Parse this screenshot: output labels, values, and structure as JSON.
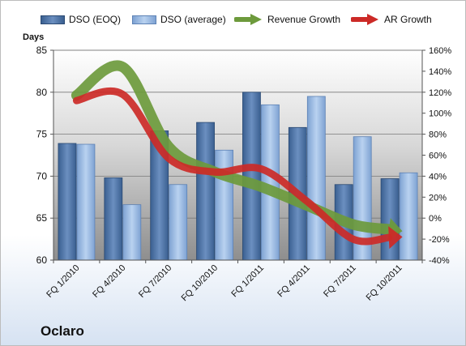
{
  "chart_data": {
    "type": "bar",
    "company": "Oclaro",
    "y_left_label": "Days",
    "y_left_range": [
      60,
      85
    ],
    "y_left_ticks": [
      "60",
      "65",
      "70",
      "75",
      "80",
      "85"
    ],
    "y_right_range": [
      -40,
      160
    ],
    "y_right_ticks": [
      "-40%",
      "-20%",
      "0%",
      "20%",
      "40%",
      "60%",
      "80%",
      "100%",
      "120%",
      "140%",
      "160%"
    ],
    "categories": [
      "FQ 1/2010",
      "FQ 4/2010",
      "FQ 7/2010",
      "FQ 10/2010",
      "FQ 1/2011",
      "FQ 4/2011",
      "FQ 7/2011",
      "FQ 10/2011"
    ],
    "series": [
      {
        "name": "DSO (EOQ)",
        "kind": "bar",
        "axis": "left",
        "color": "#4a6fa0",
        "values": [
          73.9,
          69.8,
          75.4,
          76.4,
          80.0,
          75.8,
          69.0,
          69.7
        ]
      },
      {
        "name": "DSO (average)",
        "kind": "bar",
        "axis": "left",
        "color": "#8fb2de",
        "values": [
          73.8,
          66.6,
          69.0,
          73.1,
          78.5,
          79.5,
          74.7,
          70.4
        ]
      },
      {
        "name": "Revenue Growth",
        "kind": "line",
        "axis": "right",
        "color": "#6d9a3c",
        "values": [
          117,
          144,
          68,
          44,
          30,
          12,
          -6,
          -12
        ]
      },
      {
        "name": "AR Growth",
        "kind": "line",
        "axis": "right",
        "color": "#cc2a27",
        "values": [
          112,
          118,
          57,
          44,
          47,
          16,
          -20,
          -18
        ]
      }
    ],
    "legend_position": "top",
    "grid": true
  }
}
